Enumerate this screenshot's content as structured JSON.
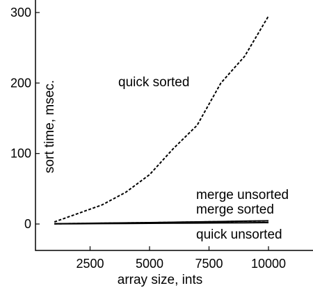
{
  "chart_data": {
    "type": "line",
    "title": "",
    "xlabel": "array size, ints",
    "ylabel": "sort time, msec.",
    "xlim": [
      0,
      10000
    ],
    "ylim": [
      -35,
      310
    ],
    "xticks": [
      2500,
      5000,
      7500,
      10000
    ],
    "xtick_labels": [
      "2500",
      "5000",
      "7500",
      "10000"
    ],
    "yticks": [
      0,
      100,
      200,
      300
    ],
    "ytick_labels": [
      "0",
      "100",
      "200",
      "300"
    ],
    "grid": false,
    "legend": "none (series labelled directly on plot)",
    "series": [
      {
        "name": "quick sorted",
        "style": "dashed",
        "x": [
          1000,
          2000,
          3000,
          4000,
          5000,
          6000,
          7000,
          8000,
          9000,
          10000
        ],
        "y": [
          3,
          15,
          27,
          45,
          70,
          107,
          140,
          200,
          238,
          295
        ]
      },
      {
        "name": "merge unsorted",
        "style": "solid",
        "x": [
          1000,
          2000,
          3000,
          4000,
          5000,
          6000,
          7000,
          8000,
          9000,
          10000
        ],
        "y": [
          0.4,
          0.8,
          1.2,
          1.6,
          2.0,
          2.5,
          3.0,
          3.5,
          4.0,
          4.5
        ]
      },
      {
        "name": "merge sorted",
        "style": "dashed",
        "x": [
          1000,
          2000,
          3000,
          4000,
          5000,
          6000,
          7000,
          8000,
          9000,
          10000
        ],
        "y": [
          0.3,
          0.7,
          1.1,
          1.5,
          1.9,
          2.4,
          2.9,
          3.4,
          3.9,
          4.3
        ]
      },
      {
        "name": "quick unsorted",
        "style": "solid",
        "x": [
          1000,
          2000,
          3000,
          4000,
          5000,
          6000,
          7000,
          8000,
          9000,
          10000
        ],
        "y": [
          0.2,
          0.4,
          0.6,
          0.8,
          1.0,
          1.2,
          1.4,
          1.6,
          1.8,
          2.0
        ]
      }
    ]
  }
}
